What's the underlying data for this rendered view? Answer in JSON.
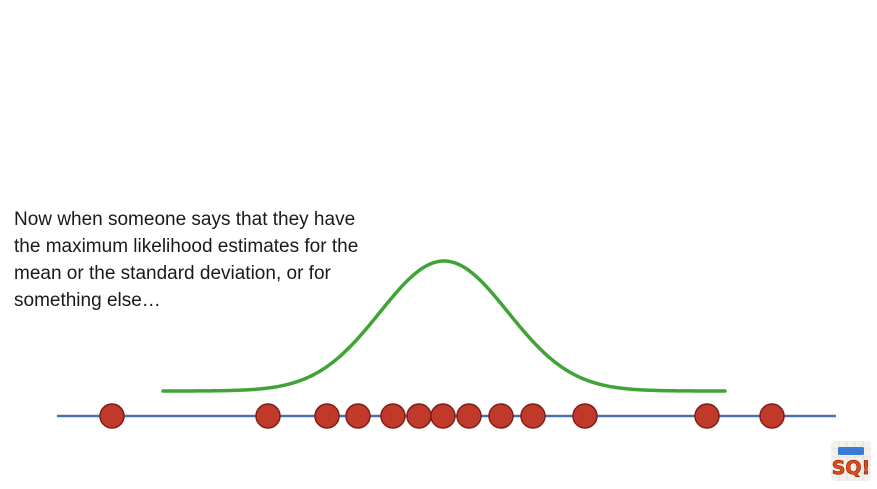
{
  "caption": {
    "lines": [
      "Now when someone says that they have",
      "the maximum likelihood estimates for the",
      "mean or the standard deviation, or for",
      "something else…"
    ]
  },
  "diagram": {
    "number_line_color": "#4a6fb5",
    "curve_color": "#3fa336",
    "point_fill": "#c0392b",
    "point_stroke": "#7d1f16",
    "data_points": 13,
    "curve": {
      "type": "normal",
      "peak": "center"
    }
  },
  "logo": {
    "name": "statquest-logo",
    "text": "SQ!"
  }
}
